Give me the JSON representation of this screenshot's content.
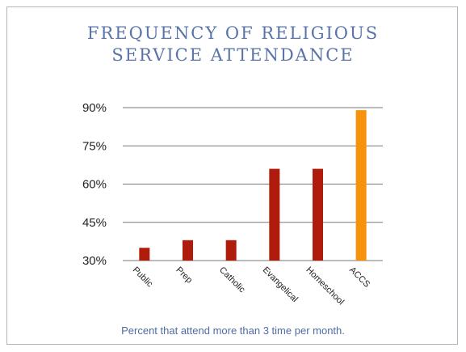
{
  "chart_data": {
    "type": "bar",
    "title": [
      "FREQUENCY OF RELIGIOUS",
      "SERVICE ATTENDANCE"
    ],
    "caption": "Percent that attend more than 3 time per month.",
    "categories": [
      "Public",
      "Prep",
      "Catholic",
      "Evangelical",
      "Homeschool",
      "ACCS"
    ],
    "values": [
      35,
      38,
      38,
      66,
      66,
      89
    ],
    "colors": [
      "#b01c0c",
      "#b01c0c",
      "#b01c0c",
      "#b01c0c",
      "#b01c0c",
      "#f7930a"
    ],
    "yticks": [
      "30%",
      "45%",
      "60%",
      "75%",
      "90%"
    ],
    "ytick_values": [
      30,
      45,
      60,
      75,
      90
    ],
    "ylim": [
      30,
      90
    ],
    "grid": true
  }
}
